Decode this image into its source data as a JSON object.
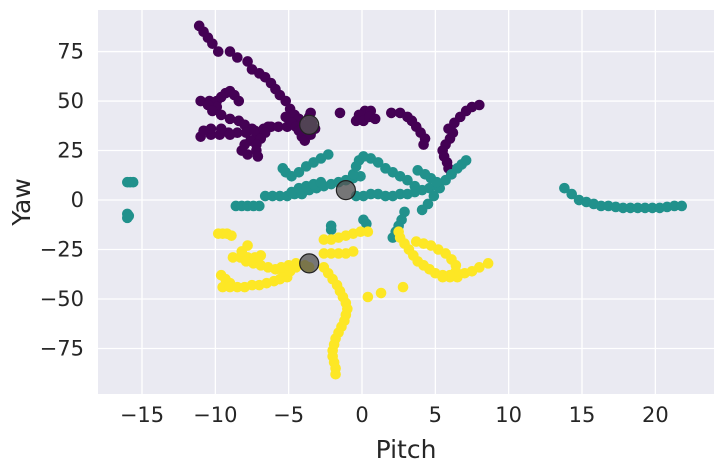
{
  "chart_data": {
    "type": "scatter",
    "title": "",
    "xlabel": "Pitch",
    "ylabel": "Yaw",
    "xlim": [
      -18,
      24
    ],
    "ylim": [
      -98,
      96
    ],
    "xticks": [
      -15,
      -10,
      -5,
      0,
      5,
      10,
      15,
      20
    ],
    "xtick_labels": [
      "−15",
      "−10",
      "−5",
      "0",
      "5",
      "10",
      "15",
      "20"
    ],
    "yticks": [
      -75,
      -50,
      -25,
      0,
      25,
      50,
      75
    ],
    "ytick_labels": [
      "−75",
      "−50",
      "−25",
      "0",
      "25",
      "50",
      "75"
    ],
    "grid": true,
    "background": "#eaeaf2",
    "grid_color": "#ffffff",
    "series": [
      {
        "color": "#440154",
        "points": [
          [
            -11.1,
            88
          ],
          [
            -10.8,
            85
          ],
          [
            -10.5,
            82
          ],
          [
            -10.2,
            79
          ],
          [
            -9.8,
            75
          ],
          [
            -9,
            75
          ],
          [
            -8.5,
            72
          ],
          [
            -7.8,
            70
          ],
          [
            -7.5,
            66
          ],
          [
            -7,
            64
          ],
          [
            -6.6,
            62
          ],
          [
            -6.2,
            59
          ],
          [
            -5.9,
            56
          ],
          [
            -5.6,
            53
          ],
          [
            -5.2,
            50
          ],
          [
            -4.9,
            46
          ],
          [
            -4.6,
            43
          ],
          [
            -4.3,
            41
          ],
          [
            -4,
            38
          ],
          [
            -3.6,
            35
          ],
          [
            -11,
            50
          ],
          [
            -10.4,
            50
          ],
          [
            -9.9,
            50
          ],
          [
            -9.6,
            52
          ],
          [
            -9.3,
            54
          ],
          [
            -9,
            55
          ],
          [
            -8.7,
            53
          ],
          [
            -8.4,
            50
          ],
          [
            -9.9,
            47
          ],
          [
            -10.5,
            48
          ],
          [
            -10.2,
            45
          ],
          [
            -9.6,
            43
          ],
          [
            -9,
            41
          ],
          [
            -8.4,
            40
          ],
          [
            -8,
            38
          ],
          [
            -7.5,
            36
          ],
          [
            -7.2,
            33
          ],
          [
            -7.6,
            30
          ],
          [
            -8,
            28
          ],
          [
            -8.2,
            25
          ],
          [
            -7.8,
            23
          ],
          [
            -11,
            32
          ],
          [
            -10.3,
            33
          ],
          [
            -9.7,
            33
          ],
          [
            -9.1,
            34
          ],
          [
            -8.5,
            34
          ],
          [
            -7.9,
            34
          ],
          [
            -7.3,
            35
          ],
          [
            -6.7,
            36
          ],
          [
            -6.2,
            37
          ],
          [
            -5.7,
            37
          ],
          [
            -5.1,
            37
          ],
          [
            -4.6,
            38
          ],
          [
            -10.8,
            35
          ],
          [
            -10.3,
            36
          ],
          [
            -9.6,
            36
          ],
          [
            -9,
            33
          ],
          [
            -6.4,
            37
          ],
          [
            -6.6,
            34
          ],
          [
            -6.9,
            31
          ],
          [
            -7.2,
            28
          ],
          [
            -7.2,
            25
          ],
          [
            -7.1,
            22
          ],
          [
            -5.2,
            42
          ],
          [
            -4.8,
            39
          ],
          [
            -4.5,
            37
          ],
          [
            -4.3,
            35
          ],
          [
            -4.1,
            32
          ],
          [
            -3.9,
            30
          ],
          [
            -3.5,
            33
          ],
          [
            -3.2,
            36
          ],
          [
            -3.4,
            39
          ],
          [
            -3.6,
            42
          ],
          [
            -3.5,
            44
          ],
          [
            -1.5,
            44
          ],
          [
            0.2,
            45
          ],
          [
            0.6,
            45
          ],
          [
            -0.2,
            43
          ],
          [
            -0.4,
            40
          ],
          [
            0.1,
            40
          ],
          [
            0.5,
            42
          ],
          [
            0.9,
            41
          ],
          [
            2,
            44
          ],
          [
            2.6,
            44
          ],
          [
            3.1,
            42
          ],
          [
            3.4,
            40
          ],
          [
            3.7,
            37
          ],
          [
            4,
            34
          ],
          [
            4.3,
            31
          ],
          [
            4.2,
            28
          ],
          [
            6,
            31
          ],
          [
            5.7,
            28
          ],
          [
            5.5,
            25
          ],
          [
            5.6,
            22
          ],
          [
            5.8,
            19
          ],
          [
            5.9,
            16
          ],
          [
            6.1,
            13
          ],
          [
            6.2,
            34
          ],
          [
            5.9,
            36
          ],
          [
            6.3,
            39
          ],
          [
            6.7,
            42
          ],
          [
            7.1,
            45
          ],
          [
            7.5,
            47
          ],
          [
            8,
            48
          ]
        ]
      },
      {
        "color": "#21918c",
        "points": [
          [
            -16,
            9
          ],
          [
            -15.8,
            9
          ],
          [
            -15.6,
            9
          ],
          [
            -16,
            -7
          ],
          [
            -15.9,
            -8
          ],
          [
            -16,
            -9
          ],
          [
            -8.6,
            -3
          ],
          [
            -8.2,
            -3
          ],
          [
            -7.8,
            -3
          ],
          [
            -7.4,
            -3
          ],
          [
            -7,
            -3
          ],
          [
            -6.6,
            2
          ],
          [
            -6.1,
            2
          ],
          [
            -5.6,
            2
          ],
          [
            -5.1,
            2
          ],
          [
            -4.6,
            3
          ],
          [
            -4.1,
            3
          ],
          [
            -3.6,
            5
          ],
          [
            -3.1,
            6
          ],
          [
            -2.6,
            7
          ],
          [
            -2.1,
            8
          ],
          [
            -1.6,
            9
          ],
          [
            -1.1,
            10
          ],
          [
            -0.6,
            11
          ],
          [
            -0.1,
            12
          ],
          [
            -5.4,
            16
          ],
          [
            -5.2,
            14
          ],
          [
            -4.8,
            12
          ],
          [
            -4.3,
            14
          ],
          [
            -3.8,
            17
          ],
          [
            -3.3,
            19
          ],
          [
            -2.8,
            21
          ],
          [
            -2.3,
            23
          ],
          [
            -4.8,
            4
          ],
          [
            -4.3,
            6
          ],
          [
            -3.8,
            7
          ],
          [
            -3.3,
            8
          ],
          [
            -2.8,
            9
          ],
          [
            -0.6,
            13
          ],
          [
            -0.4,
            17
          ],
          [
            -0.2,
            20
          ],
          [
            0.1,
            22
          ],
          [
            0.6,
            21
          ],
          [
            1.1,
            19
          ],
          [
            1.6,
            16
          ],
          [
            2.1,
            14
          ],
          [
            2.6,
            12
          ],
          [
            3.1,
            10
          ],
          [
            3.6,
            7
          ],
          [
            -0.4,
            2
          ],
          [
            0.1,
            2
          ],
          [
            0.6,
            3
          ],
          [
            1.1,
            3
          ],
          [
            1.6,
            2
          ],
          [
            2.1,
            2
          ],
          [
            2.6,
            3
          ],
          [
            3.1,
            3
          ],
          [
            3.6,
            4
          ],
          [
            4.1,
            5
          ],
          [
            4.6,
            6
          ],
          [
            5.1,
            7
          ],
          [
            -2.1,
            -13
          ],
          [
            -2.1,
            -15
          ],
          [
            0.1,
            -10
          ],
          [
            0.3,
            -12
          ],
          [
            2.9,
            -6
          ],
          [
            2.7,
            -10
          ],
          [
            2.5,
            -13
          ],
          [
            2.3,
            -16
          ],
          [
            2.1,
            -19
          ],
          [
            4.1,
            -5
          ],
          [
            4.5,
            -2
          ],
          [
            4.9,
            2
          ],
          [
            5.3,
            6
          ],
          [
            5.7,
            10
          ],
          [
            6.1,
            13
          ],
          [
            6.5,
            16
          ],
          [
            6.8,
            18
          ],
          [
            7.1,
            20
          ],
          [
            3.8,
            15
          ],
          [
            4.3,
            13
          ],
          [
            4.7,
            11
          ],
          [
            5.1,
            9
          ],
          [
            13.8,
            6
          ],
          [
            14.3,
            3
          ],
          [
            14.8,
            0
          ],
          [
            15.3,
            -1
          ],
          [
            15.8,
            -2
          ],
          [
            16.3,
            -3
          ],
          [
            16.8,
            -3
          ],
          [
            17.3,
            -3.5
          ],
          [
            17.8,
            -4
          ],
          [
            18.3,
            -4
          ],
          [
            18.8,
            -4
          ],
          [
            19.3,
            -4
          ],
          [
            19.8,
            -4
          ],
          [
            20.3,
            -4
          ],
          [
            20.8,
            -3.5
          ],
          [
            21.3,
            -3
          ],
          [
            21.8,
            -3
          ]
        ]
      },
      {
        "color": "#fde725",
        "points": [
          [
            -9.8,
            -17
          ],
          [
            -9.5,
            -17
          ],
          [
            -9.2,
            -17
          ],
          [
            -8.9,
            -18
          ],
          [
            -9.6,
            -38
          ],
          [
            -9.3,
            -40
          ],
          [
            -9,
            -42
          ],
          [
            -9.5,
            -44
          ],
          [
            -9,
            -44
          ],
          [
            -8.5,
            -44
          ],
          [
            -8,
            -44
          ],
          [
            -7.5,
            -43
          ],
          [
            -7,
            -43
          ],
          [
            -6.5,
            -42
          ],
          [
            -6,
            -41
          ],
          [
            -5.6,
            -40
          ],
          [
            -5.1,
            -39
          ],
          [
            -8.8,
            -29
          ],
          [
            -8.3,
            -29
          ],
          [
            -7.8,
            -29
          ],
          [
            -7.3,
            -29
          ],
          [
            -6.9,
            -28
          ],
          [
            -7.9,
            -31
          ],
          [
            -7.4,
            -32
          ],
          [
            -6.9,
            -33
          ],
          [
            -6.4,
            -34
          ],
          [
            -5.9,
            -35
          ],
          [
            -5.4,
            -36
          ],
          [
            -4.9,
            -36
          ],
          [
            -4.5,
            -34
          ],
          [
            -3.9,
            -33
          ],
          [
            -3.6,
            -34
          ],
          [
            -8.2,
            -26
          ],
          [
            -7.8,
            -23
          ],
          [
            -5.5,
            -34
          ],
          [
            -5,
            -33
          ],
          [
            -4.5,
            -32
          ],
          [
            -2.6,
            -20
          ],
          [
            -2.1,
            -20
          ],
          [
            -1.6,
            -19
          ],
          [
            -1.1,
            -18
          ],
          [
            -0.6,
            -17
          ],
          [
            -0.1,
            -16
          ],
          [
            0.4,
            -16
          ],
          [
            -2.6,
            -27
          ],
          [
            -2.1,
            -27
          ],
          [
            -1.6,
            -27
          ],
          [
            -1.1,
            -27
          ],
          [
            -0.6,
            -26
          ],
          [
            -2.6,
            -34
          ],
          [
            -2.3,
            -37
          ],
          [
            -2,
            -40
          ],
          [
            -1.7,
            -43
          ],
          [
            -1.5,
            -46
          ],
          [
            -1.3,
            -49
          ],
          [
            -1.1,
            -52
          ],
          [
            -1,
            -55
          ],
          [
            -1.1,
            -58
          ],
          [
            -1.2,
            -61
          ],
          [
            -1.4,
            -64
          ],
          [
            -1.6,
            -67
          ],
          [
            -1.8,
            -70
          ],
          [
            -1.9,
            -73
          ],
          [
            -2,
            -76
          ],
          [
            -2,
            -79
          ],
          [
            -1.9,
            -82
          ],
          [
            -1.8,
            -85
          ],
          [
            -1.8,
            -88
          ],
          [
            0.4,
            -49
          ],
          [
            1.3,
            -47
          ],
          [
            2.8,
            -44
          ],
          [
            2.5,
            -16
          ],
          [
            2.6,
            -19
          ],
          [
            2.9,
            -22
          ],
          [
            3.2,
            -25
          ],
          [
            3.5,
            -28
          ],
          [
            3.8,
            -31
          ],
          [
            4.2,
            -33
          ],
          [
            4.6,
            -35
          ],
          [
            5,
            -37
          ],
          [
            5.5,
            -38
          ],
          [
            6,
            -39
          ],
          [
            6.5,
            -39
          ],
          [
            7,
            -37
          ],
          [
            7.5,
            -36
          ],
          [
            8,
            -34
          ],
          [
            8.6,
            -32
          ],
          [
            3.7,
            -21
          ],
          [
            4.2,
            -22
          ],
          [
            4.7,
            -23
          ],
          [
            5.2,
            -25
          ],
          [
            5.7,
            -27
          ],
          [
            6.1,
            -30
          ],
          [
            6.4,
            -33
          ],
          [
            6.4,
            -36
          ],
          [
            6,
            -38
          ],
          [
            5.5,
            -39
          ]
        ]
      },
      {
        "color": "#555555",
        "points": [
          [
            -3.6,
            38
          ],
          [
            -1.1,
            5
          ],
          [
            -3.6,
            -32
          ]
        ]
      }
    ]
  }
}
